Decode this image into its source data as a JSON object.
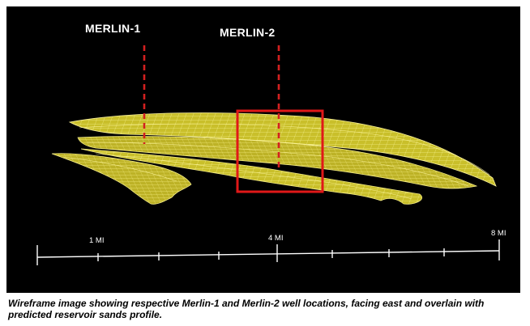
{
  "wells": [
    {
      "label": "MERLIN-1"
    },
    {
      "label": "MERLIN-2"
    }
  ],
  "scale_bar": {
    "labels": [
      "1 MI",
      "4 MI",
      "8 MI"
    ]
  },
  "caption": "Wireframe image showing respective Merlin-1 and Merlin-2 well locations, facing east and overlain with predicted reservoir sands profile.",
  "colors": {
    "background": "#000000",
    "wireframe": "#e8e04a",
    "well_marker": "#d32020",
    "highlight_box": "#e01818",
    "scale_bar": "#ffffff"
  }
}
